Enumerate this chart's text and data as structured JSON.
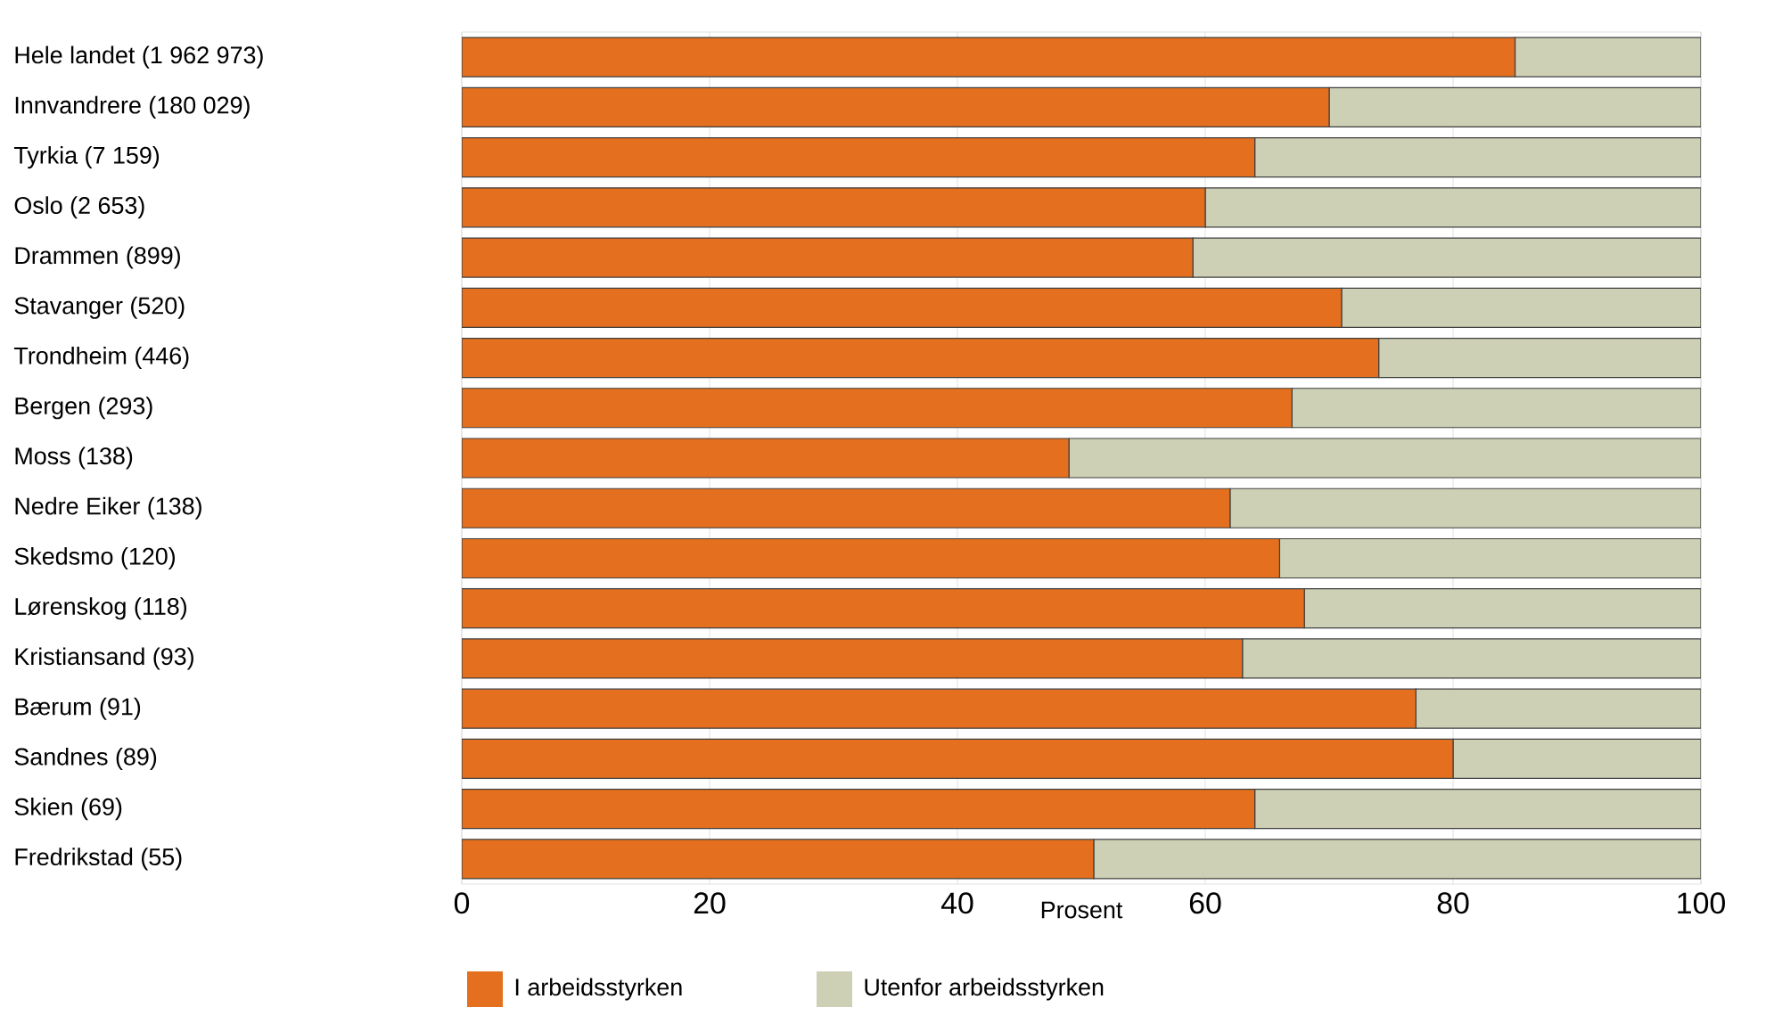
{
  "chart_data": {
    "type": "bar",
    "orientation": "horizontal",
    "stacked": true,
    "xlabel": "Prosent",
    "categories": [
      "Hele landet (1 962 973)",
      "Innvandrere (180 029)",
      "Tyrkia (7 159)",
      "Oslo (2 653)",
      "Drammen (899)",
      "Stavanger (520)",
      "Trondheim (446)",
      "Bergen (293)",
      "Moss (138)",
      "Nedre Eiker (138)",
      "Skedsmo (120)",
      "Lørenskog (118)",
      "Kristiansand (93)",
      "Bærum (91)",
      "Sandnes (89)",
      "Skien (69)",
      "Fredrikstad (55)"
    ],
    "series": [
      {
        "name": "I arbeidsstyrken",
        "color": "#e46f1e",
        "values": [
          85,
          70,
          64,
          60,
          59,
          71,
          74,
          67,
          49,
          62,
          66,
          68,
          63,
          77,
          80,
          64,
          51
        ]
      },
      {
        "name": "Utenfor arbeidsstyrken",
        "color": "#cdd0b4",
        "values": [
          15,
          30,
          36,
          40,
          41,
          29,
          26,
          33,
          51,
          38,
          34,
          32,
          37,
          23,
          20,
          36,
          49
        ]
      }
    ],
    "xlim": [
      0,
      100
    ],
    "xticks": [
      0,
      20,
      40,
      60,
      80,
      100
    ],
    "grid": "x",
    "legend": "bottom"
  }
}
